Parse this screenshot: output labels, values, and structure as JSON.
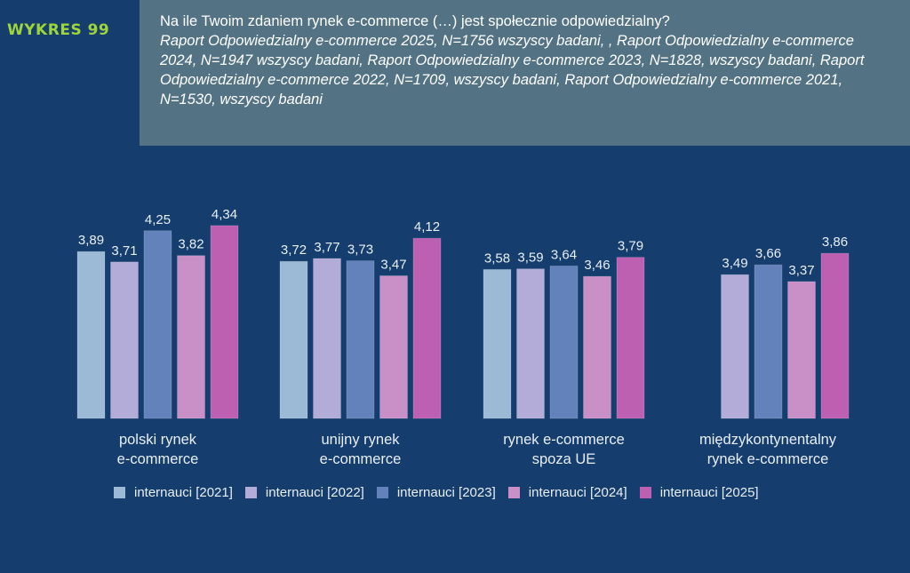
{
  "chart_number": "WYKRES 99",
  "header": {
    "title": "Na ile Twoim zdaniem rynek e-commerce (…) jest społecznie odpowiedzialny?",
    "subtitle": "Raport Odpowiedzialny e-commerce 2025, N=1756 wszyscy badani, , Raport Odpowiedzialny e-commerce 2024, N=1947 wszyscy badani, Raport Odpowiedzialny e-commerce 2023, N=1828, wszyscy badani, Raport Odpowiedzialny e-commerce 2022, N=1709, wszyscy badani, Raport Odpowiedzialny e-commerce 2021, N=1530, wszyscy badani"
  },
  "chart_data": {
    "type": "bar",
    "title": "Na ile Twoim zdaniem rynek e-commerce (…) jest społecznie odpowiedzialny?",
    "xlabel": "",
    "ylabel": "",
    "ylim": [
      1,
      5
    ],
    "grid": false,
    "legend_position": "bottom",
    "categories": [
      [
        "polski rynek",
        "e-commerce"
      ],
      [
        "unijny rynek",
        "e-commerce"
      ],
      [
        "rynek e-commerce",
        "spoza UE"
      ],
      [
        "międzykontynentalny",
        "rynek e-commerce"
      ]
    ],
    "series": [
      {
        "name": "internauci [2021]",
        "color": "#9cb9d6",
        "values": [
          3.89,
          3.72,
          3.58,
          null
        ],
        "labels": [
          "3,89",
          "3,72",
          "3,58",
          null
        ]
      },
      {
        "name": "internauci [2022]",
        "color": "#b3acd8",
        "values": [
          3.71,
          3.77,
          3.59,
          3.49
        ],
        "labels": [
          "3,71",
          "3,77",
          "3,59",
          "3,49"
        ]
      },
      {
        "name": "internauci [2023]",
        "color": "#6382bb",
        "values": [
          4.25,
          3.73,
          3.64,
          3.66
        ],
        "labels": [
          "4,25",
          "3,73",
          "3,64",
          "3,66"
        ]
      },
      {
        "name": "internauci [2024]",
        "color": "#c990c7",
        "values": [
          3.82,
          3.47,
          3.46,
          3.37
        ],
        "labels": [
          "3,82",
          "3,47",
          "3,46",
          "3,37"
        ]
      },
      {
        "name": "internauci [2025]",
        "color": "#bd60b2",
        "values": [
          4.34,
          4.12,
          3.79,
          3.86
        ],
        "labels": [
          "4,34",
          "4,12",
          "3,79",
          "3,86"
        ]
      }
    ]
  }
}
